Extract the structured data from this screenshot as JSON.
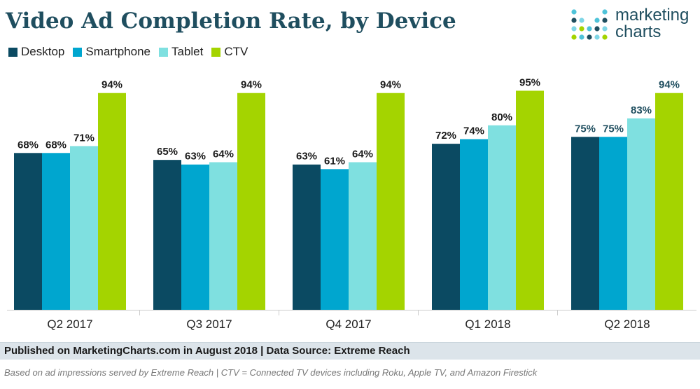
{
  "title": "Video Ad Completion Rate, by Device",
  "brand": {
    "line1": "marketing",
    "line2": "charts"
  },
  "footer": {
    "published": "Published on MarketingCharts.com in August 2018 | Data Source: Extreme Reach",
    "note": "Based on ad impressions served by Extreme Reach | CTV = Connected TV devices including Roku, Apple TV, and Amazon Firestick"
  },
  "colors": {
    "title": "#1f4e5f",
    "footer_bg": "#dce4ea"
  },
  "chart_data": {
    "type": "bar",
    "title": "Video Ad Completion Rate, by Device",
    "xlabel": "",
    "ylabel": "",
    "ylim": [
      0,
      100
    ],
    "grid": false,
    "legend": "top-left",
    "categories": [
      "Q2 2017",
      "Q3 2017",
      "Q4 2017",
      "Q1 2018",
      "Q2 2018"
    ],
    "series": [
      {
        "name": "Desktop",
        "color": "#0b4a62",
        "values": [
          68,
          65,
          63,
          72,
          75
        ],
        "labels": [
          "68%",
          "65%",
          "63%",
          "72%",
          "75%"
        ]
      },
      {
        "name": "Smartphone",
        "color": "#00a6cf",
        "values": [
          68,
          63,
          61,
          74,
          75
        ],
        "labels": [
          "68%",
          "63%",
          "61%",
          "74%",
          "75%"
        ]
      },
      {
        "name": "Tablet",
        "color": "#7fe0e0",
        "values": [
          71,
          64,
          64,
          80,
          83
        ],
        "labels": [
          "71%",
          "64%",
          "64%",
          "80%",
          "83%"
        ]
      },
      {
        "name": "CTV",
        "color": "#a4d400",
        "values": [
          94,
          94,
          94,
          95,
          94
        ],
        "labels": [
          "94%",
          "94%",
          "94%",
          "95%",
          "94%"
        ]
      }
    ],
    "label_colors": [
      "#1a1a1a",
      "#1a1a1a",
      "#1a1a1a",
      "#1a1a1a",
      "#1f4e5f"
    ]
  }
}
